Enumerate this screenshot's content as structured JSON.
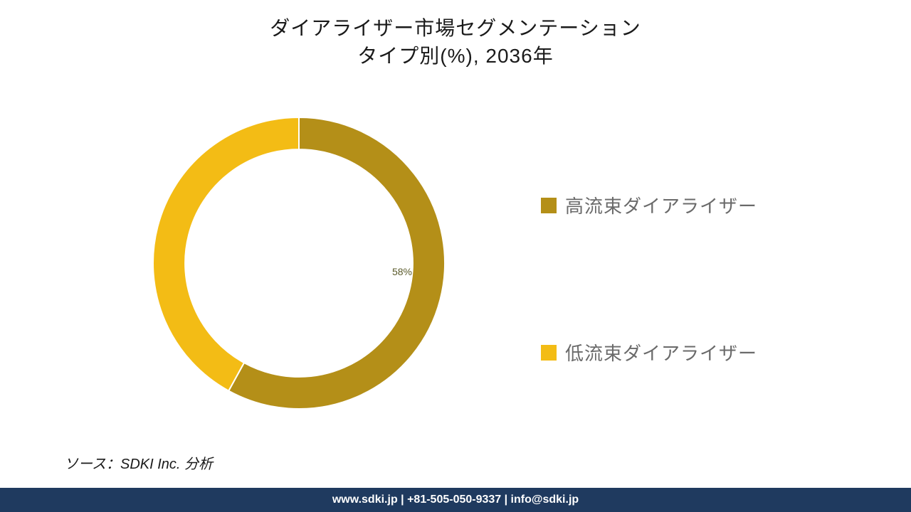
{
  "title": {
    "line1": "ダイアライザー市場セグメンテーション",
    "line2": "タイプ別(%), 2036年",
    "fontsize": 28,
    "color": "#1a1a1a"
  },
  "chart": {
    "type": "donut",
    "background_color": "#ffffff",
    "inner_radius_ratio": 0.78,
    "slices": [
      {
        "label": "高流束ダイアライザー",
        "value": 58,
        "color": "#b48f18",
        "show_label": true
      },
      {
        "label": "低流束ダイアライザー",
        "value": 42,
        "color": "#f3bc15",
        "show_label": false
      }
    ],
    "stroke_color": "#ffffff",
    "stroke_width": 2,
    "value_label": {
      "text": "58%",
      "fontsize": 14,
      "color": "#5a5a2a"
    }
  },
  "legend": {
    "fontsize": 26,
    "text_color": "#6a6a6a",
    "swatch_size": 22,
    "items": [
      {
        "label": "高流束ダイアライザー",
        "color": "#b48f18"
      },
      {
        "label": "低流束ダイアライザー",
        "color": "#f3bc15"
      }
    ]
  },
  "source": {
    "text": "ソース：SDKI Inc. 分析",
    "fontsize": 20,
    "color": "#1a1a1a"
  },
  "footer": {
    "text": "www.sdki.jp | +81-505-050-9337 | info@sdki.jp",
    "background_color": "#1f3a5f",
    "text_color": "#ffffff",
    "fontsize": 16
  }
}
